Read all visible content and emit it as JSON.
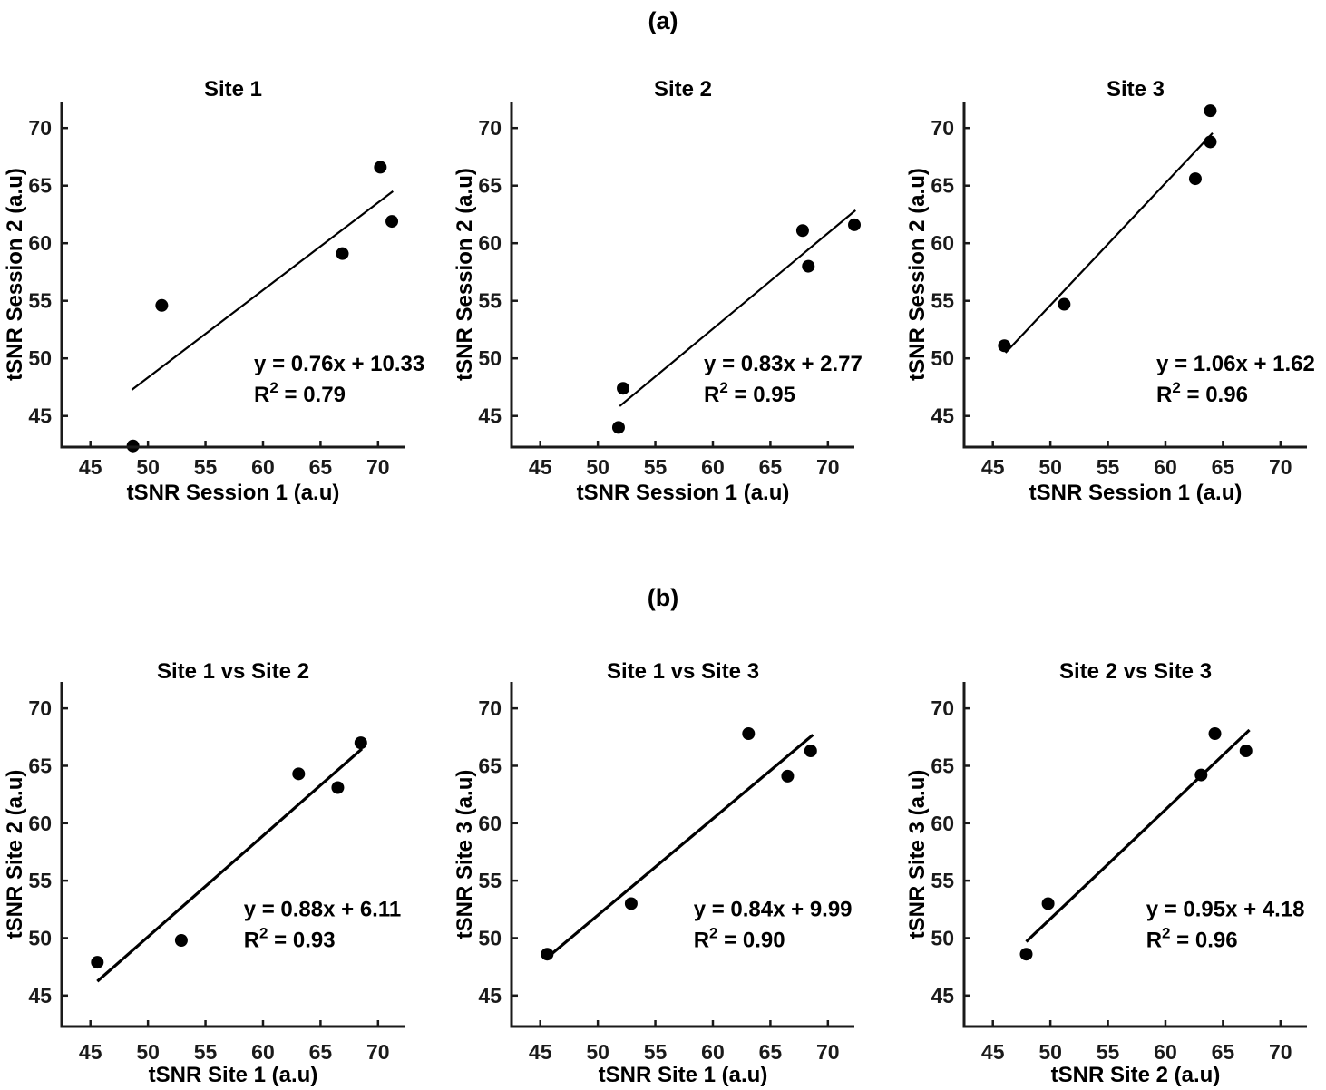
{
  "figure": {
    "background": "#ffffff",
    "axis_color": "#1a1a1a",
    "data_color": "#000000",
    "grid": false,
    "legend": "none"
  },
  "panels": [
    {
      "id": "a",
      "label": "(a)"
    },
    {
      "id": "b",
      "label": "(b)"
    }
  ],
  "chart_data": [
    {
      "type": "scatter",
      "panel": "a",
      "title": "Site 1",
      "xlabel": "tSNR Session 1 (a.u)",
      "ylabel": "tSNR Session 2 (a.u)",
      "xlim": [
        42.5,
        72.3
      ],
      "ylim": [
        42.3,
        72.3
      ],
      "x_ticks": [
        45,
        50,
        55,
        60,
        65,
        70
      ],
      "y_ticks": [
        45,
        50,
        55,
        60,
        65,
        70
      ],
      "points": [
        [
          48.7,
          42.4
        ],
        [
          51.2,
          54.6
        ],
        [
          66.9,
          59.1
        ],
        [
          70.2,
          66.6
        ],
        [
          71.2,
          61.9
        ]
      ],
      "fit": {
        "slope": 0.76,
        "intercept": 10.33,
        "x_start": 48.6,
        "x_end": 71.3
      },
      "equation": "y = 0.76x + 10.33",
      "r2_prefix": "R",
      "r2_exponent": "2",
      "r2": "0.79"
    },
    {
      "type": "scatter",
      "panel": "a",
      "title": "Site 2",
      "xlabel": "tSNR Session 1 (a.u)",
      "ylabel": "tSNR Session 2 (a.u)",
      "xlim": [
        42.5,
        72.3
      ],
      "ylim": [
        42.3,
        72.3
      ],
      "x_ticks": [
        45,
        50,
        55,
        60,
        65,
        70
      ],
      "y_ticks": [
        45,
        50,
        55,
        60,
        65,
        70
      ],
      "points": [
        [
          51.8,
          44.0
        ],
        [
          52.2,
          47.4
        ],
        [
          67.8,
          61.1
        ],
        [
          68.3,
          58.0
        ],
        [
          72.3,
          61.6
        ]
      ],
      "fit": {
        "slope": 0.83,
        "intercept": 2.77,
        "x_start": 51.9,
        "x_end": 72.4
      },
      "equation": "y = 0.83x + 2.77",
      "r2_prefix": "R",
      "r2_exponent": "2",
      "r2": "0.95"
    },
    {
      "type": "scatter",
      "panel": "a",
      "title": "Site 3",
      "xlabel": "tSNR Session 1 (a.u)",
      "ylabel": "tSNR Session 2 (a.u)",
      "xlim": [
        42.5,
        72.3
      ],
      "ylim": [
        42.3,
        72.3
      ],
      "x_ticks": [
        45,
        50,
        55,
        60,
        65,
        70
      ],
      "y_ticks": [
        45,
        50,
        55,
        60,
        65,
        70
      ],
      "points": [
        [
          46.0,
          51.1
        ],
        [
          51.2,
          54.7
        ],
        [
          62.6,
          65.6
        ],
        [
          63.9,
          68.8
        ],
        [
          63.9,
          71.5
        ]
      ],
      "fit": {
        "slope": 1.06,
        "intercept": 1.62,
        "x_start": 46.1,
        "x_end": 64.1
      },
      "equation": "y = 1.06x + 1.62",
      "r2_prefix": "R",
      "r2_exponent": "2",
      "r2": "0.96"
    },
    {
      "type": "scatter",
      "panel": "b",
      "title": "Site 1 vs Site 2",
      "xlabel": "tSNR Site 1 (a.u)",
      "ylabel": "tSNR Site 2 (a.u)",
      "xlim": [
        42.5,
        72.3
      ],
      "ylim": [
        42.3,
        72.3
      ],
      "x_ticks": [
        45,
        50,
        55,
        60,
        65,
        70
      ],
      "y_ticks": [
        45,
        50,
        55,
        60,
        65,
        70
      ],
      "points": [
        [
          45.6,
          47.9
        ],
        [
          52.9,
          49.8
        ],
        [
          63.1,
          64.3
        ],
        [
          66.5,
          63.1
        ],
        [
          68.5,
          67.0
        ]
      ],
      "fit": {
        "slope": 0.88,
        "intercept": 6.11,
        "x_start": 45.6,
        "x_end": 68.6
      },
      "equation": "y = 0.88x + 6.11",
      "r2_prefix": "R",
      "r2_exponent": "2",
      "r2": "0.93"
    },
    {
      "type": "scatter",
      "panel": "b",
      "title": "Site 1 vs Site 3",
      "xlabel": "tSNR Site 1 (a.u)",
      "ylabel": "tSNR Site 3 (a.u)",
      "xlim": [
        42.5,
        72.3
      ],
      "ylim": [
        42.3,
        72.3
      ],
      "x_ticks": [
        45,
        50,
        55,
        60,
        65,
        70
      ],
      "y_ticks": [
        45,
        50,
        55,
        60,
        65,
        70
      ],
      "points": [
        [
          45.6,
          48.6
        ],
        [
          52.9,
          53.0
        ],
        [
          63.1,
          67.8
        ],
        [
          66.5,
          64.1
        ],
        [
          68.5,
          66.3
        ]
      ],
      "fit": {
        "slope": 0.84,
        "intercept": 9.99,
        "x_start": 45.5,
        "x_end": 68.7
      },
      "equation": "y = 0.84x + 9.99",
      "r2_prefix": "R",
      "r2_exponent": "2",
      "r2": "0.90"
    },
    {
      "type": "scatter",
      "panel": "b",
      "title": "Site 2 vs Site 3",
      "xlabel": "tSNR Site 2 (a.u)",
      "ylabel": "tSNR Site 3 (a.u)",
      "xlim": [
        42.5,
        72.3
      ],
      "ylim": [
        42.3,
        72.3
      ],
      "x_ticks": [
        45,
        50,
        55,
        60,
        65,
        70
      ],
      "y_ticks": [
        45,
        50,
        55,
        60,
        65,
        70
      ],
      "points": [
        [
          47.9,
          48.6
        ],
        [
          49.8,
          53.0
        ],
        [
          63.1,
          64.2
        ],
        [
          64.3,
          67.8
        ],
        [
          67.0,
          66.3
        ]
      ],
      "fit": {
        "slope": 0.95,
        "intercept": 4.18,
        "x_start": 47.9,
        "x_end": 67.3
      },
      "equation": "y = 0.95x + 4.18",
      "r2_prefix": "R",
      "r2_exponent": "2",
      "r2": "0.96"
    }
  ]
}
